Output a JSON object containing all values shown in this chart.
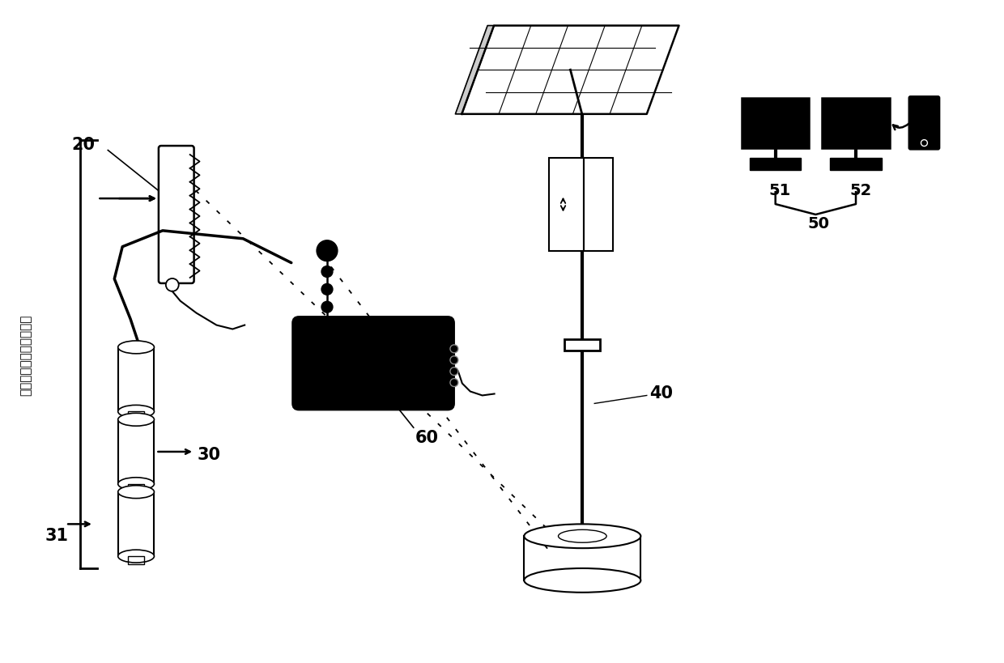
{
  "bg_color": "#ffffff",
  "lc": "#000000",
  "figsize": [
    12.4,
    8.2
  ],
  "dpi": 100,
  "chinese_text": "埋设于边滑坡地质土体中"
}
